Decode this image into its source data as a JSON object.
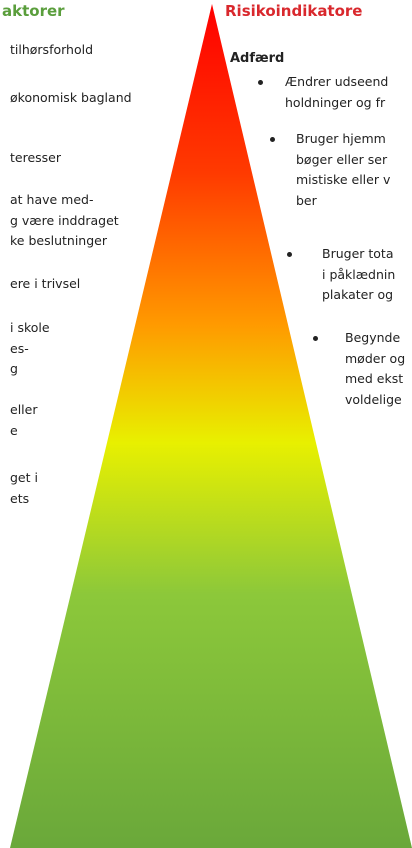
{
  "left": {
    "heading": "aktorer",
    "items": [
      [
        "tilhørsforhold"
      ],
      [
        "økonomisk bagland"
      ],
      [
        "teresser"
      ],
      [
        "at have med-",
        "g være inddraget",
        "ke beslutninger"
      ],
      [
        "ere i trivsel"
      ],
      [
        "i skole",
        "es-",
        "g"
      ],
      [
        "eller",
        "e"
      ],
      [
        "get i",
        "ets"
      ]
    ]
  },
  "right": {
    "heading": "Risikoindikatore",
    "subheading": "Adfærd",
    "bullets": [
      [
        "Ændrer udseend",
        "holdninger og fr"
      ],
      [
        "Bruger hjemm",
        "bøger eller ser",
        "mistiske eller v",
        "ber"
      ],
      [
        "Bruger tota",
        "i påklædnin",
        "plakater og"
      ],
      [
        "Begynde",
        "møder og",
        "med ekst",
        "voldelige"
      ]
    ]
  }
}
